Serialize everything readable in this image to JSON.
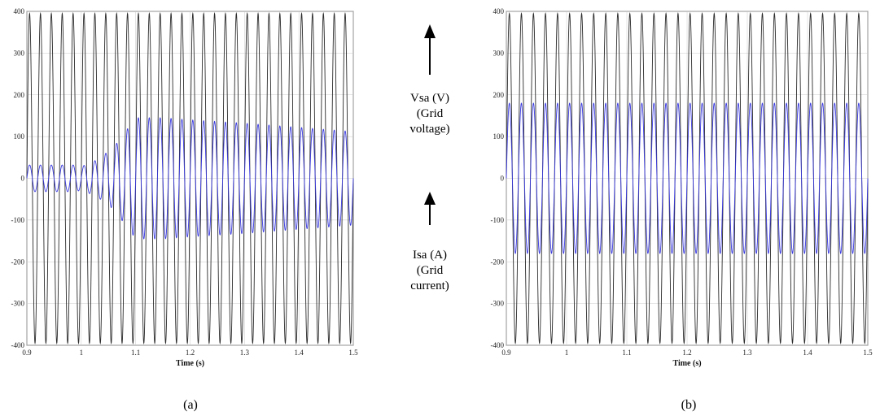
{
  "chart_data": [
    {
      "type": "line",
      "panel_label": "(a)",
      "xlabel": "Time (s)",
      "ylabel": "",
      "xlim": [
        0.9,
        1.5
      ],
      "ylim": [
        -400,
        400
      ],
      "x_ticks": [
        "0.9",
        "1",
        "1.1",
        "1.2",
        "1.3",
        "1.4",
        "1.5"
      ],
      "y_ticks": [
        "400",
        "300",
        "200",
        "100",
        "0",
        "-100",
        "-200",
        "-300",
        "-400"
      ],
      "grid": true,
      "series": [
        {
          "color": "#2b2b2b",
          "kind": "sine",
          "amplitude": 395,
          "frequency_hz": 50
        },
        {
          "color": "#3a3adf",
          "kind": "sine_envelope",
          "frequency_hz": 50,
          "envelope_x": [
            0.9,
            0.99,
            1.0,
            1.03,
            1.06,
            1.08,
            1.1,
            1.15,
            1.2,
            1.3,
            1.4,
            1.5
          ],
          "envelope_y": [
            32,
            32,
            28,
            45,
            75,
            110,
            145,
            145,
            140,
            132,
            122,
            112
          ]
        }
      ]
    },
    {
      "type": "line",
      "panel_label": "(b)",
      "xlabel": "Time (s)",
      "ylabel": "",
      "xlim": [
        0.9,
        1.5
      ],
      "ylim": [
        -400,
        400
      ],
      "x_ticks": [
        "0.9",
        "1",
        "1.1",
        "1.2",
        "1.3",
        "1.4",
        "1.5"
      ],
      "y_ticks": [
        "400",
        "300",
        "200",
        "100",
        "0",
        "-100",
        "-200",
        "-300",
        "-400"
      ],
      "grid": true,
      "series": [
        {
          "color": "#2b2b2b",
          "kind": "sine",
          "amplitude": 395,
          "frequency_hz": 50
        },
        {
          "color": "#3a3adf",
          "kind": "sine_envelope",
          "frequency_hz": 50,
          "envelope_x": [
            0.9,
            1.5
          ],
          "envelope_y": [
            180,
            180
          ]
        }
      ]
    }
  ],
  "legend_text": {
    "voltage_symbol": "Vsa (V)",
    "voltage_desc_1": "(Grid",
    "voltage_desc_2": "voltage)",
    "current_symbol": "Isa (A)",
    "current_desc_1": "(Grid",
    "current_desc_2": "current)"
  }
}
